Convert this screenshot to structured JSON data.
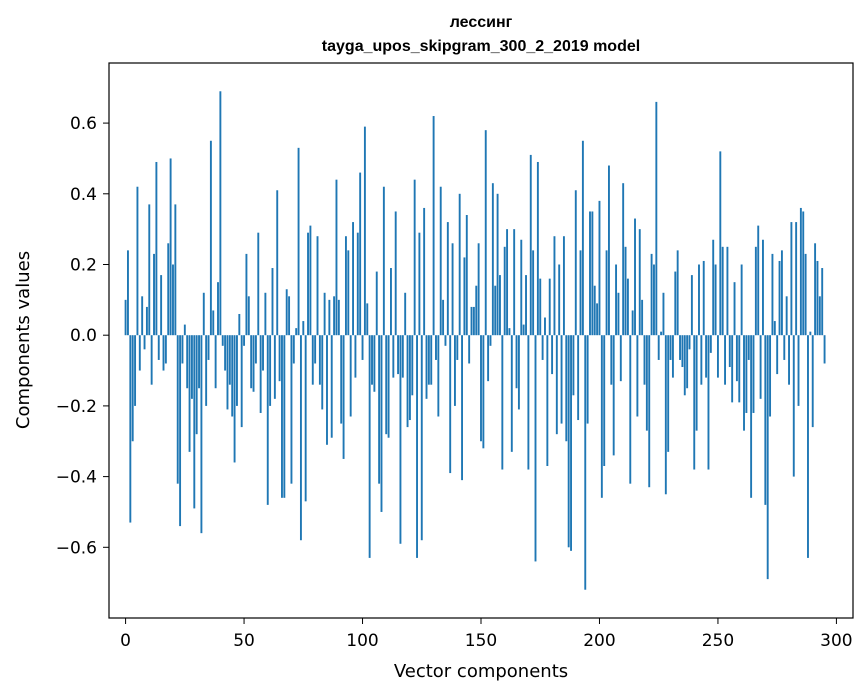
{
  "chart_data": {
    "type": "bar",
    "title": "лессинг",
    "subtitle": "tayga_upos_skipgram_300_2_2019 model",
    "xlabel": "Vector components",
    "ylabel": "Components values",
    "xlim": [
      -7,
      307
    ],
    "ylim": [
      -0.8,
      0.77
    ],
    "xticks": [
      0,
      50,
      100,
      150,
      200,
      250,
      300
    ],
    "yticks": [
      -0.6,
      -0.4,
      -0.2,
      0.0,
      0.2,
      0.4,
      0.6
    ],
    "ytick_labels": [
      "−0.6",
      "−0.4",
      "−0.2",
      "0.0",
      "0.2",
      "0.4",
      "0.6"
    ],
    "xtick_labels": [
      "0",
      "50",
      "100",
      "150",
      "200",
      "250",
      "300"
    ],
    "bar_color": "#1f77b4",
    "values": [
      0.1,
      0.24,
      -0.53,
      -0.3,
      -0.2,
      0.42,
      -0.1,
      0.11,
      -0.04,
      0.08,
      0.37,
      -0.14,
      0.23,
      0.49,
      -0.07,
      0.17,
      -0.1,
      -0.08,
      0.26,
      0.5,
      0.2,
      0.37,
      -0.42,
      -0.54,
      -0.08,
      0.03,
      -0.15,
      -0.33,
      -0.18,
      -0.49,
      -0.28,
      -0.15,
      -0.56,
      0.12,
      -0.2,
      -0.07,
      0.55,
      0.07,
      -0.15,
      0.15,
      0.69,
      -0.03,
      -0.1,
      -0.21,
      -0.14,
      -0.23,
      -0.36,
      -0.2,
      0.06,
      -0.26,
      -0.03,
      0.23,
      0.11,
      -0.15,
      -0.16,
      -0.08,
      0.29,
      -0.22,
      -0.1,
      0.12,
      -0.48,
      -0.2,
      0.19,
      -0.18,
      0.41,
      -0.13,
      -0.46,
      -0.46,
      0.13,
      0.11,
      -0.42,
      -0.08,
      0.02,
      0.53,
      -0.58,
      0.04,
      -0.47,
      0.29,
      0.31,
      -0.14,
      -0.08,
      0.28,
      -0.14,
      -0.21,
      0.12,
      -0.31,
      0.1,
      -0.29,
      0.11,
      0.44,
      0.1,
      -0.25,
      -0.35,
      0.28,
      0.24,
      -0.23,
      0.32,
      -0.12,
      0.29,
      0.46,
      -0.07,
      0.59,
      0.09,
      -0.63,
      -0.14,
      -0.16,
      0.18,
      -0.42,
      -0.5,
      0.42,
      -0.28,
      -0.29,
      0.19,
      -0.12,
      0.35,
      -0.11,
      -0.59,
      -0.12,
      0.12,
      -0.26,
      -0.24,
      -0.17,
      0.44,
      -0.63,
      0.29,
      -0.58,
      0.36,
      -0.18,
      -0.14,
      -0.14,
      0.62,
      -0.07,
      -0.23,
      0.42,
      0.1,
      -0.03,
      0.32,
      -0.39,
      0.26,
      -0.2,
      -0.07,
      0.4,
      -0.41,
      0.22,
      0.34,
      -0.08,
      0.08,
      0.08,
      0.14,
      0.26,
      -0.3,
      -0.32,
      0.58,
      -0.13,
      -0.03,
      0.43,
      0.14,
      0.4,
      0.17,
      -0.38,
      0.25,
      0.3,
      0.02,
      -0.33,
      0.3,
      -0.15,
      -0.21,
      0.27,
      0.03,
      0.17,
      -0.38,
      0.51,
      0.24,
      -0.64,
      0.49,
      0.16,
      -0.07,
      0.05,
      -0.37,
      0.16,
      -0.11,
      0.28,
      -0.28,
      0.2,
      -0.25,
      0.28,
      -0.3,
      -0.6,
      -0.61,
      -0.17,
      0.41,
      -0.24,
      0.24,
      0.55,
      -0.72,
      -0.25,
      0.35,
      0.35,
      0.14,
      0.09,
      0.38,
      -0.46,
      -0.37,
      0.24,
      0.48,
      -0.14,
      -0.34,
      0.2,
      0.12,
      -0.13,
      0.43,
      0.25,
      0.16,
      -0.42,
      0.07,
      0.33,
      -0.23,
      0.3,
      0.1,
      -0.14,
      -0.27,
      -0.43,
      0.23,
      0.2,
      0.66,
      -0.07,
      0.01,
      0.12,
      -0.45,
      -0.33,
      -0.07,
      -0.12,
      0.18,
      0.24,
      -0.07,
      -0.09,
      -0.17,
      -0.15,
      -0.04,
      0.17,
      -0.38,
      -0.27,
      0.2,
      -0.14,
      0.21,
      -0.12,
      -0.38,
      -0.05,
      0.27,
      0.2,
      -0.12,
      0.52,
      0.25,
      -0.14,
      0.25,
      -0.09,
      -0.19,
      0.15,
      -0.13,
      -0.19,
      0.2,
      -0.27,
      -0.22,
      -0.07,
      -0.46,
      -0.22,
      0.25,
      0.31,
      -0.18,
      0.27,
      -0.48,
      -0.69,
      -0.23,
      0.23,
      0.04,
      -0.11,
      0.21,
      0.24,
      -0.07,
      0.11,
      -0.14,
      0.32,
      -0.4,
      0.32,
      -0.2,
      0.36,
      0.35,
      0.23,
      -0.63,
      0.01,
      -0.26,
      0.26,
      0.21,
      0.11,
      0.19,
      -0.08
    ]
  }
}
